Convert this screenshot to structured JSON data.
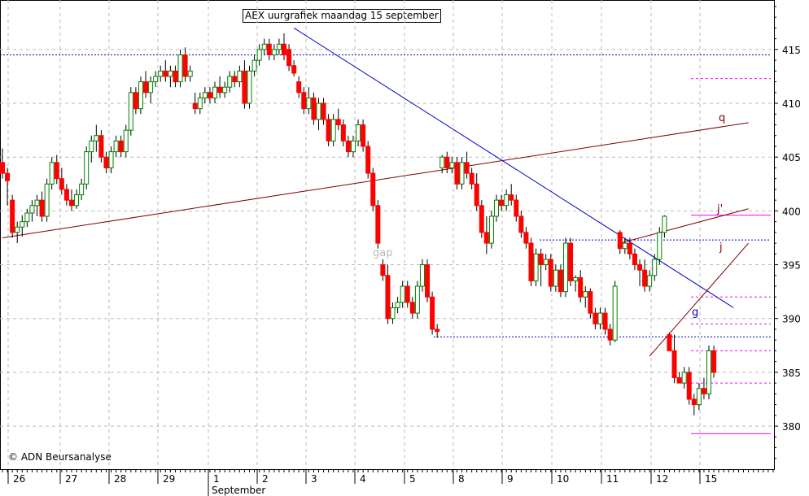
{
  "title": "AEX uurgrafiek maandag 15 september",
  "copyright": "© ADN Beursanalyse",
  "month_label": "September",
  "chart_data": {
    "type": "candlestick",
    "title": "AEX uurgrafiek maandag 15 september",
    "ylim": [
      376,
      419.6
    ],
    "y_ticks": [
      380,
      385,
      390,
      395,
      400,
      405,
      410,
      415
    ],
    "x_day_labels": [
      "26",
      "27",
      "28",
      "29",
      "1",
      "2",
      "3",
      "4",
      "5",
      "8",
      "9",
      "10",
      "11",
      "12",
      "15"
    ],
    "grid": true,
    "candles": [
      [
        404.5,
        405.8,
        403.0,
        403.5
      ],
      [
        403.5,
        404.0,
        400.5,
        402.8
      ],
      [
        401.0,
        401.5,
        397.5,
        398.0
      ],
      [
        398.0,
        399.0,
        397.0,
        398.5
      ],
      [
        398.5,
        399.6,
        397.6,
        399.0
      ],
      [
        399.0,
        400.2,
        398.5,
        399.8
      ],
      [
        399.8,
        401.0,
        399.0,
        400.5
      ],
      [
        400.5,
        401.5,
        399.5,
        401.0
      ],
      [
        401.0,
        401.8,
        399.0,
        399.5
      ],
      [
        399.5,
        403.0,
        399.0,
        402.5
      ],
      [
        402.5,
        405.0,
        402.0,
        404.5
      ],
      [
        404.5,
        405.2,
        402.5,
        403.0
      ],
      [
        403.0,
        404.0,
        401.5,
        402.0
      ],
      [
        402.0,
        402.5,
        400.5,
        401.0
      ],
      [
        401.0,
        402.0,
        400.0,
        400.5
      ],
      [
        400.5,
        402.0,
        400.2,
        401.5
      ],
      [
        401.5,
        403.0,
        401.0,
        402.5
      ],
      [
        402.5,
        406.0,
        402.0,
        405.5
      ],
      [
        405.5,
        407.0,
        404.5,
        406.5
      ],
      [
        406.5,
        408.0,
        405.5,
        407.0
      ],
      [
        407.0,
        407.5,
        404.5,
        405.0
      ],
      [
        405.0,
        405.5,
        403.5,
        404.0
      ],
      [
        404.0,
        406.0,
        403.5,
        405.5
      ],
      [
        405.5,
        407.0,
        405.0,
        406.5
      ],
      [
        406.5,
        407.0,
        405.0,
        405.5
      ],
      [
        405.5,
        408.0,
        405.0,
        407.5
      ],
      [
        407.5,
        411.5,
        407.0,
        411.0
      ],
      [
        411.0,
        411.5,
        409.0,
        409.5
      ],
      [
        409.5,
        412.5,
        409.0,
        412.0
      ],
      [
        412.0,
        413.0,
        410.5,
        411.0
      ],
      [
        411.0,
        412.5,
        410.0,
        412.0
      ],
      [
        412.0,
        413.0,
        411.5,
        412.5
      ],
      [
        412.5,
        413.5,
        412.0,
        413.0
      ],
      [
        413.0,
        414.0,
        412.0,
        412.5
      ],
      [
        412.5,
        413.5,
        411.5,
        413.0
      ],
      [
        413.0,
        413.5,
        411.5,
        412.0
      ],
      [
        412.0,
        415.0,
        411.5,
        414.5
      ],
      [
        414.5,
        415.2,
        412.0,
        412.5
      ],
      [
        412.5,
        413.5,
        412.0,
        413.0
      ],
      [
        410.0,
        411.0,
        409.0,
        409.5
      ],
      [
        409.5,
        411.0,
        409.0,
        410.5
      ],
      [
        410.5,
        411.5,
        410.0,
        411.0
      ],
      [
        411.0,
        411.5,
        410.0,
        410.5
      ],
      [
        410.5,
        412.0,
        410.0,
        411.5
      ],
      [
        411.5,
        412.5,
        410.5,
        411.0
      ],
      [
        411.0,
        412.0,
        410.5,
        411.5
      ],
      [
        411.5,
        413.0,
        411.0,
        412.5
      ],
      [
        412.5,
        413.0,
        411.5,
        412.0
      ],
      [
        412.0,
        413.5,
        411.5,
        413.0
      ],
      [
        413.0,
        414.0,
        409.5,
        410.0
      ],
      [
        410.0,
        413.5,
        409.5,
        413.0
      ],
      [
        413.0,
        414.5,
        412.5,
        414.0
      ],
      [
        414.0,
        415.5,
        413.5,
        415.0
      ],
      [
        415.0,
        416.0,
        414.5,
        415.5
      ],
      [
        415.5,
        416.0,
        414.0,
        414.5
      ],
      [
        414.5,
        415.5,
        414.0,
        415.0
      ],
      [
        415.0,
        416.0,
        414.5,
        415.5
      ],
      [
        415.5,
        416.5,
        414.0,
        414.5
      ],
      [
        415.0,
        415.5,
        413.0,
        413.5
      ],
      [
        413.5,
        414.0,
        412.5,
        412.8
      ],
      [
        412.0,
        412.5,
        410.5,
        411.0
      ],
      [
        411.0,
        411.5,
        409.0,
        409.5
      ],
      [
        409.5,
        411.5,
        409.0,
        410.5
      ],
      [
        410.5,
        411.0,
        408.0,
        408.5
      ],
      [
        408.5,
        410.5,
        407.5,
        410.0
      ],
      [
        410.0,
        410.5,
        408.0,
        408.5
      ],
      [
        408.5,
        409.0,
        406.0,
        406.5
      ],
      [
        406.5,
        409.0,
        406.0,
        408.5
      ],
      [
        408.5,
        409.5,
        407.5,
        408.0
      ],
      [
        408.0,
        408.5,
        406.0,
        406.5
      ],
      [
        406.5,
        407.0,
        405.0,
        405.5
      ],
      [
        405.5,
        407.0,
        405.0,
        406.5
      ],
      [
        406.5,
        408.5,
        406.0,
        408.0
      ],
      [
        408.0,
        408.5,
        405.5,
        406.0
      ],
      [
        406.0,
        406.5,
        403.0,
        403.5
      ],
      [
        403.5,
        404.0,
        400.0,
        400.5
      ],
      [
        400.5,
        401.0,
        396.5,
        397.0
      ],
      [
        395.0,
        395.5,
        393.5,
        394.0
      ],
      [
        394.0,
        395.0,
        389.5,
        390.0
      ],
      [
        390.0,
        391.5,
        389.5,
        391.0
      ],
      [
        391.0,
        392.0,
        390.5,
        391.5
      ],
      [
        391.5,
        393.5,
        391.0,
        393.0
      ],
      [
        393.0,
        393.5,
        391.0,
        391.5
      ],
      [
        391.5,
        392.0,
        390.0,
        390.5
      ],
      [
        390.5,
        393.5,
        390.0,
        393.0
      ],
      [
        393.0,
        395.5,
        392.5,
        395.0
      ],
      [
        395.0,
        395.5,
        391.5,
        392.0
      ],
      [
        392.0,
        392.5,
        388.5,
        389.0
      ],
      [
        389.0,
        389.5,
        388.2,
        388.8
      ],
      [
        404.0,
        405.2,
        403.5,
        405.0
      ],
      [
        405.0,
        405.5,
        403.5,
        404.0
      ],
      [
        404.0,
        405.0,
        403.5,
        404.5
      ],
      [
        404.5,
        405.0,
        402.0,
        402.5
      ],
      [
        402.5,
        405.0,
        402.0,
        404.5
      ],
      [
        404.5,
        405.5,
        403.0,
        403.5
      ],
      [
        403.5,
        404.0,
        402.0,
        402.5
      ],
      [
        402.5,
        403.5,
        400.0,
        400.5
      ],
      [
        400.5,
        401.0,
        397.5,
        398.0
      ],
      [
        398.0,
        399.5,
        396.0,
        397.0
      ],
      [
        397.0,
        400.0,
        396.5,
        399.5
      ],
      [
        399.5,
        401.5,
        399.0,
        401.0
      ],
      [
        401.0,
        401.5,
        400.0,
        400.5
      ],
      [
        400.5,
        402.0,
        400.0,
        401.5
      ],
      [
        401.5,
        402.5,
        400.5,
        401.0
      ],
      [
        401.0,
        401.5,
        399.0,
        399.5
      ],
      [
        399.5,
        400.0,
        397.5,
        398.0
      ],
      [
        398.0,
        398.5,
        396.5,
        397.0
      ],
      [
        397.0,
        397.5,
        393.0,
        393.5
      ],
      [
        393.5,
        396.5,
        393.0,
        396.0
      ],
      [
        396.0,
        396.5,
        393.0,
        395.0
      ],
      [
        395.0,
        396.0,
        394.5,
        395.5
      ],
      [
        395.5,
        396.0,
        392.5,
        393.0
      ],
      [
        393.0,
        395.0,
        392.5,
        394.5
      ],
      [
        394.5,
        395.0,
        392.0,
        392.5
      ],
      [
        392.5,
        397.5,
        392.0,
        397.0
      ],
      [
        397.0,
        397.5,
        393.0,
        393.5
      ],
      [
        393.5,
        394.0,
        392.5,
        393.8
      ],
      [
        393.8,
        394.5,
        391.5,
        392.0
      ],
      [
        392.0,
        393.0,
        391.0,
        392.5
      ],
      [
        392.5,
        392.8,
        390.0,
        390.5
      ],
      [
        390.5,
        391.0,
        389.0,
        389.5
      ],
      [
        389.5,
        391.0,
        389.0,
        390.5
      ],
      [
        390.5,
        391.0,
        388.5,
        389.0
      ],
      [
        389.0,
        389.5,
        387.5,
        388.0
      ],
      [
        388.0,
        393.5,
        387.8,
        393.0
      ],
      [
        398.0,
        398.2,
        396.0,
        396.5
      ],
      [
        396.5,
        397.5,
        396.0,
        397.0
      ],
      [
        397.0,
        397.5,
        395.5,
        396.0
      ],
      [
        396.0,
        396.5,
        394.5,
        395.0
      ],
      [
        395.0,
        395.5,
        393.0,
        394.5
      ],
      [
        394.5,
        395.5,
        392.5,
        393.0
      ],
      [
        393.0,
        394.5,
        392.5,
        394.0
      ],
      [
        394.0,
        396.0,
        393.5,
        395.5
      ],
      [
        395.5,
        398.5,
        395.0,
        398.0
      ],
      [
        398.0,
        399.6,
        397.5,
        399.5
      ],
      [
        388.5,
        388.7,
        387.0,
        387.0
      ],
      [
        387.0,
        388.5,
        384.0,
        384.5
      ],
      [
        384.5,
        385.0,
        384.0,
        384.0
      ],
      [
        384.0,
        385.5,
        383.5,
        385.0
      ],
      [
        385.0,
        385.5,
        382.0,
        382.5
      ],
      [
        382.5,
        383.0,
        381.0,
        382.0
      ],
      [
        382.0,
        384.0,
        381.5,
        383.5
      ],
      [
        383.5,
        384.5,
        382.5,
        383.0
      ],
      [
        383.0,
        387.5,
        382.5,
        387.0
      ],
      [
        387.0,
        387.5,
        384.5,
        385.0
      ]
    ],
    "horizontal_levels": [
      {
        "value": 414.5,
        "color": "#0000cc",
        "style": "dotted"
      },
      {
        "value": 388.3,
        "color": "#0000cc",
        "style": "dotted"
      },
      {
        "value": 397.3,
        "color": "#0000cc",
        "style": "dotted"
      },
      {
        "value": 412.3,
        "color": "#ff00ff",
        "style": "dashed"
      },
      {
        "value": 399.6,
        "color": "#ff00ff",
        "style": "solid"
      },
      {
        "value": 392.0,
        "color": "#ff00ff",
        "style": "dashed"
      },
      {
        "value": 389.5,
        "color": "#ff00ff",
        "style": "dashed"
      },
      {
        "value": 387.0,
        "color": "#ff00ff",
        "style": "dashed"
      },
      {
        "value": 384.0,
        "color": "#ff00ff",
        "style": "dashed"
      },
      {
        "value": 379.3,
        "color": "#ff00ff",
        "style": "solid"
      }
    ],
    "trendlines": [
      {
        "name": "q",
        "color": "#800000",
        "from": [
          0,
          397.5
        ],
        "to": [
          151,
          408.2
        ]
      },
      {
        "name": "g",
        "color": "#0000cc",
        "from": [
          59,
          417.0
        ],
        "to": [
          148,
          391.0
        ]
      },
      {
        "name": "j'",
        "color": "#800000",
        "from": [
          125,
          397.0
        ],
        "to": [
          151,
          400.2
        ]
      },
      {
        "name": "j",
        "color": "#800000",
        "from": [
          131,
          386.5
        ],
        "to": [
          151,
          397.0
        ]
      }
    ],
    "annotations": [
      {
        "text": "q",
        "color": "#800000"
      },
      {
        "text": "g",
        "color": "#0000cc"
      },
      {
        "text": "j'",
        "color": "#800000"
      },
      {
        "text": "j",
        "color": "#800000"
      },
      {
        "text": "gap",
        "color": "#bbbbbb"
      }
    ]
  }
}
